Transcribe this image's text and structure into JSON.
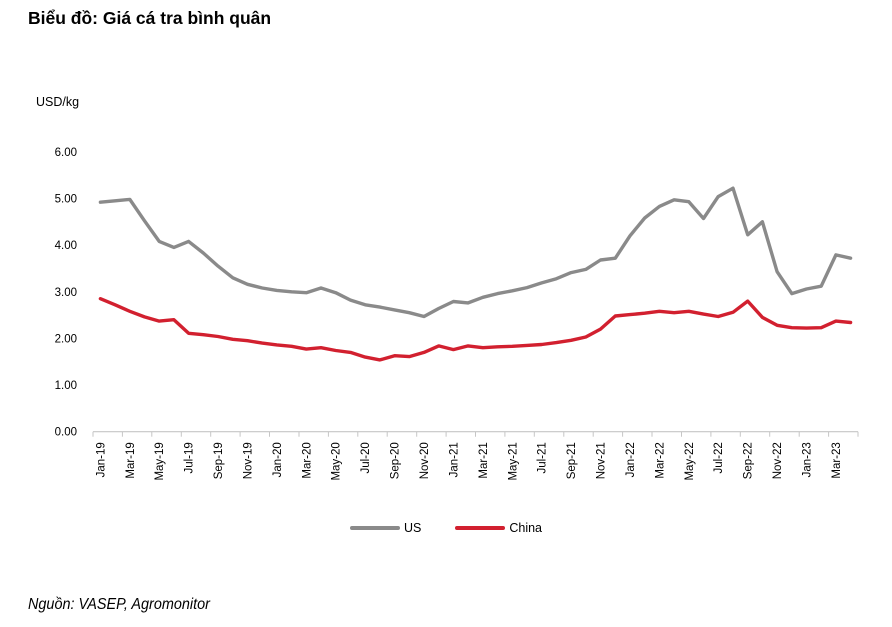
{
  "title": "Biểu đồ: Giá cá tra bình quân",
  "source": "Nguồn: VASEP, Agromonitor",
  "chart": {
    "unit_label": "USD/kg",
    "chart_data": {
      "type": "line",
      "title": "Biểu đồ: Giá cá tra bình quân",
      "ylabel": "USD/kg",
      "xlabel": "",
      "ylim": [
        0,
        6
      ],
      "ytick_labels": [
        "0.00",
        "1.00",
        "2.00",
        "3.00",
        "4.00",
        "5.00",
        "6.00"
      ],
      "grid": false,
      "legend_position": "bottom",
      "x": [
        "Jan-19",
        "Feb-19",
        "Mar-19",
        "Apr-19",
        "May-19",
        "Jun-19",
        "Jul-19",
        "Aug-19",
        "Sep-19",
        "Oct-19",
        "Nov-19",
        "Dec-19",
        "Jan-20",
        "Feb-20",
        "Mar-20",
        "Apr-20",
        "May-20",
        "Jun-20",
        "Jul-20",
        "Aug-20",
        "Sep-20",
        "Oct-20",
        "Nov-20",
        "Dec-20",
        "Jan-21",
        "Feb-21",
        "Mar-21",
        "Apr-21",
        "May-21",
        "Jun-21",
        "Jul-21",
        "Aug-21",
        "Sep-21",
        "Oct-21",
        "Nov-21",
        "Dec-21",
        "Jan-22",
        "Feb-22",
        "Mar-22",
        "Apr-22",
        "May-22",
        "Jun-22",
        "Jul-22",
        "Aug-22",
        "Sep-22",
        "Oct-22",
        "Nov-22",
        "Dec-22",
        "Jan-23",
        "Feb-23",
        "Mar-23",
        "Apr-23"
      ],
      "x_tick_interval": 2,
      "x_tick_labels": [
        "Jan-19",
        "Mar-19",
        "May-19",
        "Jul-19",
        "Sep-19",
        "Nov-19",
        "Jan-20",
        "Mar-20",
        "May-20",
        "Jul-20",
        "Sep-20",
        "Nov-20",
        "Jan-21",
        "Mar-21",
        "May-21",
        "Jul-21",
        "Sep-21",
        "Nov-21",
        "Jan-22",
        "Mar-22",
        "May-22",
        "Jul-22",
        "Sep-22",
        "Nov-22",
        "Jan-23",
        "Mar-23"
      ],
      "series": [
        {
          "name": "US",
          "color": "#8a8a8a",
          "values": [
            4.92,
            4.95,
            4.98,
            4.52,
            4.08,
            3.95,
            4.08,
            3.83,
            3.55,
            3.3,
            3.16,
            3.08,
            3.03,
            3.0,
            2.98,
            3.08,
            2.98,
            2.82,
            2.72,
            2.67,
            2.61,
            2.55,
            2.47,
            2.64,
            2.79,
            2.76,
            2.88,
            2.96,
            3.02,
            3.09,
            3.19,
            3.28,
            3.41,
            3.48,
            3.68,
            3.72,
            4.2,
            4.58,
            4.83,
            4.97,
            4.93,
            4.57,
            5.04,
            5.22,
            4.22,
            4.5,
            3.43,
            2.96,
            3.06,
            3.12,
            3.79,
            3.72
          ]
        },
        {
          "name": "China",
          "color": "#d2202f",
          "values": [
            2.85,
            2.72,
            2.58,
            2.46,
            2.37,
            2.4,
            2.11,
            2.08,
            2.04,
            1.98,
            1.95,
            1.9,
            1.86,
            1.83,
            1.77,
            1.8,
            1.74,
            1.7,
            1.6,
            1.54,
            1.63,
            1.61,
            1.7,
            1.84,
            1.76,
            1.84,
            1.8,
            1.82,
            1.83,
            1.85,
            1.87,
            1.91,
            1.96,
            2.03,
            2.2,
            2.48,
            2.51,
            2.54,
            2.58,
            2.55,
            2.58,
            2.52,
            2.47,
            2.56,
            2.8,
            2.45,
            2.28,
            2.23,
            2.22,
            2.23,
            2.37,
            2.34
          ]
        }
      ]
    }
  }
}
